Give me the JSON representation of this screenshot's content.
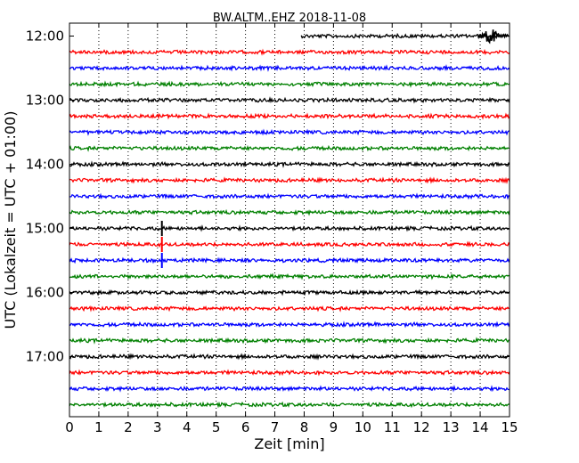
{
  "chart_data": {
    "type": "line",
    "title": "BW.ALTM..EHZ 2018-11-08",
    "xlabel": "Zeit  [min]",
    "ylabel": "UTC (Lokalzeit = UTC + 01:00)",
    "xlim": [
      0,
      15
    ],
    "x_ticks": [
      "0",
      "1",
      "2",
      "3",
      "4",
      "5",
      "6",
      "7",
      "8",
      "9",
      "10",
      "11",
      "12",
      "13",
      "14",
      "15"
    ],
    "y_ticks": [
      "12:00",
      "13:00",
      "14:00",
      "15:00",
      "16:00",
      "17:00"
    ],
    "grid": "vertical dotted at each minute",
    "colors": {
      "black": "#000000",
      "red": "#ff0000",
      "blue": "#0000ff",
      "green": "#008000"
    },
    "traces": [
      {
        "start": "12:00",
        "color": "black",
        "from_min": 7.9,
        "events": [
          {
            "at_min": 14.35,
            "amp": "large"
          }
        ]
      },
      {
        "start": "12:15",
        "color": "red"
      },
      {
        "start": "12:30",
        "color": "blue"
      },
      {
        "start": "12:45",
        "color": "green"
      },
      {
        "start": "13:00",
        "color": "black"
      },
      {
        "start": "13:15",
        "color": "red"
      },
      {
        "start": "13:30",
        "color": "blue"
      },
      {
        "start": "13:45",
        "color": "green"
      },
      {
        "start": "14:00",
        "color": "black"
      },
      {
        "start": "14:15",
        "color": "red"
      },
      {
        "start": "14:30",
        "color": "blue"
      },
      {
        "start": "14:45",
        "color": "green"
      },
      {
        "start": "15:00",
        "color": "black",
        "events": [
          {
            "at_min": 3.15,
            "amp": "spike"
          }
        ]
      },
      {
        "start": "15:15",
        "color": "red",
        "events": [
          {
            "at_min": 3.15,
            "amp": "spike"
          }
        ]
      },
      {
        "start": "15:30",
        "color": "blue",
        "events": [
          {
            "at_min": 3.15,
            "amp": "spike"
          }
        ]
      },
      {
        "start": "15:45",
        "color": "green"
      },
      {
        "start": "16:00",
        "color": "black"
      },
      {
        "start": "16:15",
        "color": "red"
      },
      {
        "start": "16:30",
        "color": "blue"
      },
      {
        "start": "16:45",
        "color": "green"
      },
      {
        "start": "17:00",
        "color": "black"
      },
      {
        "start": "17:15",
        "color": "red"
      },
      {
        "start": "17:30",
        "color": "blue"
      },
      {
        "start": "17:45",
        "color": "green"
      }
    ]
  }
}
